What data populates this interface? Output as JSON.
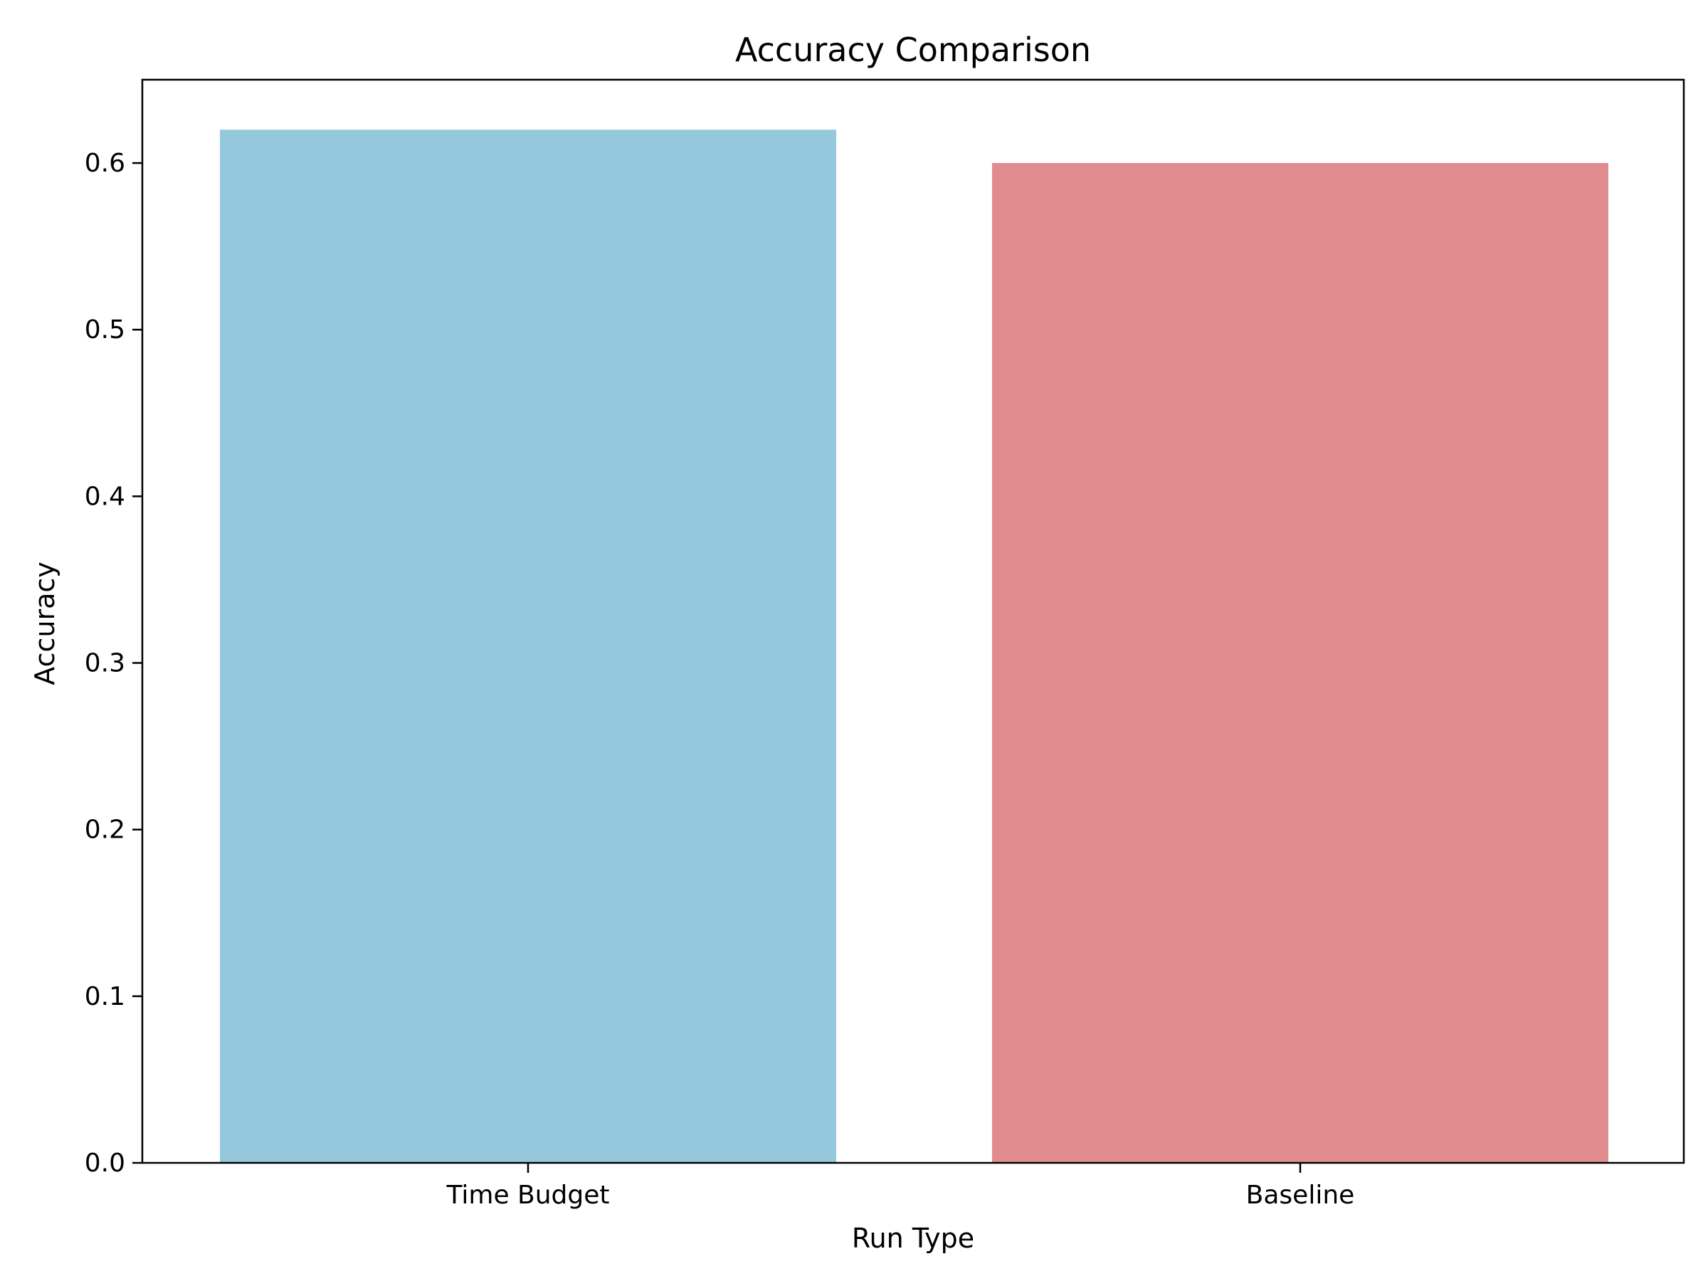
{
  "chart_data": {
    "type": "bar",
    "title": "Accuracy Comparison",
    "xlabel": "Run Type",
    "ylabel": "Accuracy",
    "categories": [
      "Time Budget",
      "Baseline"
    ],
    "values": [
      0.62,
      0.6
    ],
    "colors": [
      "#96c8dd",
      "#e08c8e"
    ],
    "ylim": [
      0,
      0.65
    ],
    "yticks": [
      0.0,
      0.1,
      0.2,
      0.3,
      0.4,
      0.5,
      0.6
    ],
    "ytick_labels": [
      "0.0",
      "0.1",
      "0.2",
      "0.3",
      "0.4",
      "0.5",
      "0.6"
    ],
    "grid": false,
    "legend": "none"
  }
}
